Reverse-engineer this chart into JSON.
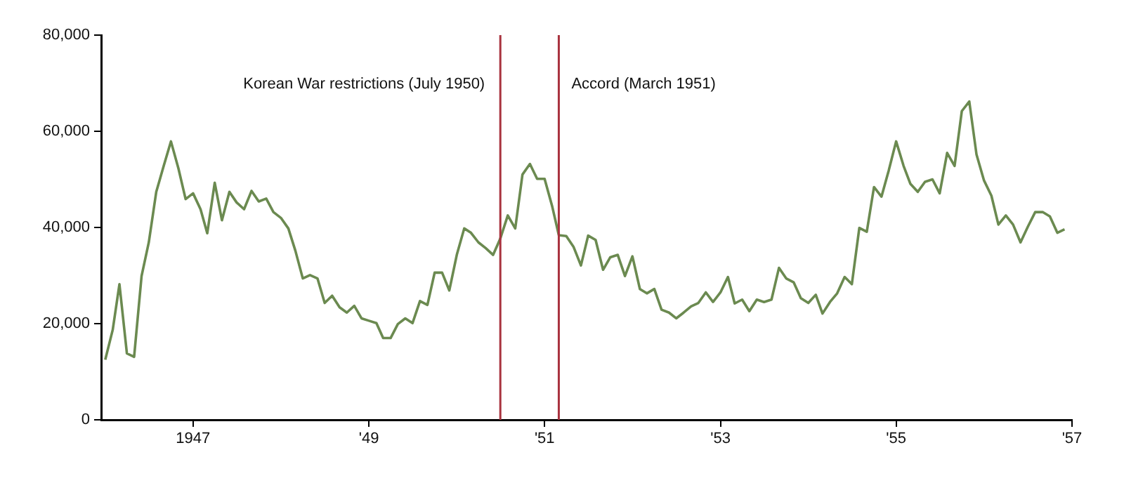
{
  "chart_data": {
    "type": "line",
    "grid": false,
    "legend": false,
    "x": [
      "1946-01",
      "1946-02",
      "1946-03",
      "1946-04",
      "1946-05",
      "1946-06",
      "1946-07",
      "1946-08",
      "1946-09",
      "1946-10",
      "1946-11",
      "1946-12",
      "1947-01",
      "1947-02",
      "1947-03",
      "1947-04",
      "1947-05",
      "1947-06",
      "1947-07",
      "1947-08",
      "1947-09",
      "1947-10",
      "1947-11",
      "1947-12",
      "1948-01",
      "1948-02",
      "1948-03",
      "1948-04",
      "1948-05",
      "1948-06",
      "1948-07",
      "1948-08",
      "1948-09",
      "1948-10",
      "1948-11",
      "1948-12",
      "1949-01",
      "1949-02",
      "1949-03",
      "1949-04",
      "1949-05",
      "1949-06",
      "1949-07",
      "1949-08",
      "1949-09",
      "1949-10",
      "1949-11",
      "1949-12",
      "1950-01",
      "1950-02",
      "1950-03",
      "1950-04",
      "1950-05",
      "1950-06",
      "1950-07",
      "1950-08",
      "1950-09",
      "1950-10",
      "1950-11",
      "1950-12",
      "1951-01",
      "1951-02",
      "1951-03",
      "1951-04",
      "1951-05",
      "1951-06",
      "1951-07",
      "1951-08",
      "1951-09",
      "1951-10",
      "1951-11",
      "1951-12",
      "1952-01",
      "1952-02",
      "1952-03",
      "1952-04",
      "1952-05",
      "1952-06",
      "1952-07",
      "1952-08",
      "1952-09",
      "1952-10",
      "1952-11",
      "1952-12",
      "1953-01",
      "1953-02",
      "1953-03",
      "1953-04",
      "1953-05",
      "1953-06",
      "1953-07",
      "1953-08",
      "1953-09",
      "1953-10",
      "1953-11",
      "1953-12",
      "1954-01",
      "1954-02",
      "1954-03",
      "1954-04",
      "1954-05",
      "1954-06",
      "1954-07",
      "1954-08",
      "1954-09",
      "1954-10",
      "1954-11",
      "1954-12",
      "1955-01",
      "1955-02",
      "1955-03",
      "1955-04",
      "1955-05",
      "1955-06",
      "1955-07",
      "1955-08",
      "1955-09",
      "1955-10",
      "1955-11",
      "1955-12",
      "1956-01",
      "1956-02",
      "1956-03",
      "1956-04",
      "1956-05",
      "1956-06",
      "1956-07",
      "1956-08",
      "1956-09",
      "1956-10",
      "1956-11",
      "1956-12"
    ],
    "series": [
      {
        "color": "#6b8a50",
        "values": [
          12500,
          18700,
          28200,
          13800,
          13100,
          29900,
          36900,
          47400,
          52800,
          57900,
          52300,
          45900,
          47100,
          43800,
          38800,
          49300,
          41500,
          47400,
          45200,
          43800,
          47600,
          45400,
          46000,
          43200,
          42000,
          39800,
          35200,
          29400,
          30100,
          29400,
          24300,
          25800,
          23400,
          22300,
          23700,
          21100,
          20600,
          20100,
          17000,
          17000,
          19900,
          21100,
          20100,
          24700,
          23900,
          30600,
          30600,
          26900,
          34300,
          39800,
          38900,
          36900,
          35700,
          34300,
          37700,
          42500,
          39800,
          51000,
          53200,
          50100,
          50100,
          44500,
          38400,
          38200,
          36000,
          32100,
          38300,
          37400,
          31200,
          33800,
          34300,
          29900,
          34000,
          27200,
          26300,
          27200,
          22900,
          22300,
          21100,
          22300,
          23600,
          24300,
          26500,
          24500,
          26500,
          29700,
          24200,
          25000,
          22600,
          25000,
          24500,
          25000,
          31600,
          29400,
          28600,
          25300,
          24300,
          26000,
          22100,
          24500,
          26300,
          29700,
          28200,
          39900,
          39100,
          48400,
          46400,
          51800,
          57900,
          52800,
          49100,
          47400,
          49500,
          50000,
          47100,
          55500,
          52800,
          64200,
          66200,
          55200,
          49800,
          46600,
          40600,
          42500,
          40600,
          36900,
          40100,
          43200,
          43200,
          42300,
          38900,
          39600
        ]
      }
    ],
    "xlim": [
      "1945-12-15",
      "1957-01"
    ],
    "xticks": [
      "1947",
      {
        "value": "1949",
        "label": "'49"
      },
      {
        "value": "1951",
        "label": "'51"
      },
      {
        "value": "1953",
        "label": "'53"
      },
      {
        "value": "1955",
        "label": "'55"
      },
      {
        "value": "1957",
        "label": "'57"
      }
    ],
    "ylim": [
      0,
      80000
    ],
    "yticks": [
      0,
      {
        "value": 20000,
        "label": "20,000"
      },
      {
        "value": 40000,
        "label": "40,000"
      },
      {
        "value": 60000,
        "label": "60,000"
      },
      {
        "value": 80000,
        "label": "80,000"
      }
    ],
    "ref_lines": [
      {
        "axis": "x",
        "value": "1950-07",
        "label": "Korean War restrictions (July 1950)",
        "color": "#a8323e"
      },
      {
        "axis": "x",
        "value": "1951-03",
        "label": "Accord (March 1951)",
        "color": "#a8323e"
      }
    ]
  }
}
